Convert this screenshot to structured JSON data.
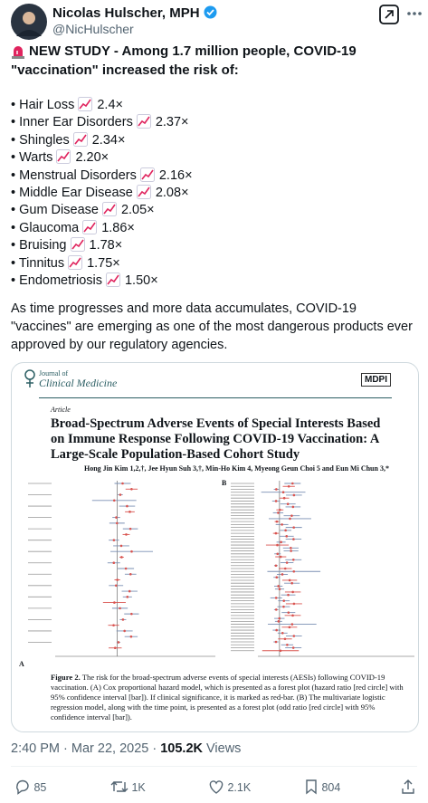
{
  "header": {
    "name": "Nicolas Hulscher, MPH",
    "handle": "@NicHulscher"
  },
  "tweet": {
    "headline": "NEW STUDY - Among 1.7 million people, COVID-19 \"vaccination\" increased the risk of:",
    "items": [
      {
        "label": "Hair Loss",
        "value": "2.4×"
      },
      {
        "label": "Inner Ear Disorders",
        "value": "2.37×"
      },
      {
        "label": "Shingles",
        "value": "2.34×"
      },
      {
        "label": "Warts",
        "value": "2.20×"
      },
      {
        "label": "Menstrual Disorders",
        "value": "2.16×"
      },
      {
        "label": "Middle Ear Disease",
        "value": "2.08×"
      },
      {
        "label": "Gum Disease",
        "value": "2.05×"
      },
      {
        "label": "Glaucoma",
        "value": "1.86×"
      },
      {
        "label": "Bruising",
        "value": "1.78×"
      },
      {
        "label": "Tinnitus",
        "value": "1.75×"
      },
      {
        "label": "Endometriosis",
        "value": "1.50×"
      }
    ],
    "paragraph": "As time progresses and more data accumulates, COVID-19 \"vaccines\" are emerging as one of the most dangerous products ever approved by our regulatory agencies."
  },
  "paper": {
    "journal_line1": "Journal of",
    "journal_line2": "Clinical Medicine",
    "publisher": "MDPI",
    "article_type": "Article",
    "title": "Broad-Spectrum Adverse Events of Special Interests Based on Immune Response Following COVID-19 Vaccination: A Large-Scale Population-Based Cohort Study",
    "authors": "Hong Jin Kim 1,2,†, Jee Hyun Suh 3,†, Min-Ho Kim 4, Myeong Geun Choi 5 and Eun Mi Chun 3,*",
    "panel_a": "A",
    "panel_b": "B",
    "caption_label": "Figure 2.",
    "caption": "The risk for the broad-spectrum adverse events of special interests (AESIs) following COVID-19 vaccination. (A) Cox proportional hazard model, which is presented as a forest plot (hazard ratio [red circle] with 95% confidence interval [bar]). If clinical significance, it is marked as red-bar. (B) The multivariate logistic regression model, along with the time point, is presented as a forest plot (odd ratio [red circle] with 95% confidence interval [bar])."
  },
  "footer": {
    "timestamp": "2:40 PM · Mar 22, 2025 · ",
    "views": "105.2K",
    "views_label": "Views",
    "replies": "85",
    "reposts": "1K",
    "likes": "2.1K",
    "bookmarks": "804"
  }
}
